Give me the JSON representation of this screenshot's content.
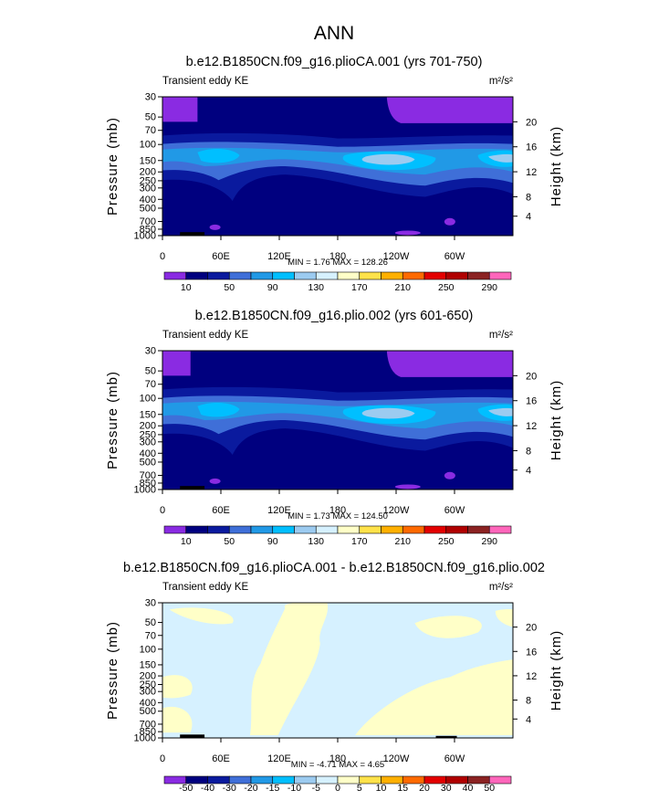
{
  "figure": {
    "suptitle": "ANN",
    "colors": {
      "abs_palette": [
        "#8A2BE2",
        "#00007F",
        "#0A1A9E",
        "#3F6FD8",
        "#2199E6",
        "#00BFFF",
        "#9CCBF0",
        "#D6F1FF",
        "#FFFFC8",
        "#FFE24A",
        "#FFB000",
        "#FF6A00",
        "#E30000",
        "#B00000",
        "#8B2222",
        "#FF66BB"
      ],
      "diff_palette": [
        "#8A2BE2",
        "#00007F",
        "#0A1A9E",
        "#3F6FD8",
        "#2199E6",
        "#00BFFF",
        "#9CCBF0",
        "#D6F1FF",
        "#FFFFC8",
        "#FFE24A",
        "#FFB000",
        "#FF6A00",
        "#E30000",
        "#B00000",
        "#8B2222",
        "#FF66BB"
      ]
    }
  },
  "chart_data": [
    {
      "type": "contour",
      "title": "b.e12.B1850CN.f09_g16.plioCA.001 (yrs 701-750)",
      "subtitle_left": "Transient eddy KE",
      "units": "m²/s²",
      "ylabel": "Pressure (mb)",
      "y2label": "Height (km)",
      "xticks": [
        "0",
        "60E",
        "120E",
        "180",
        "120W",
        "60W"
      ],
      "yticks": [
        "30",
        "50",
        "70",
        "100",
        "150",
        "200",
        "250",
        "300",
        "400",
        "500",
        "700",
        "850",
        "1000"
      ],
      "y2ticks": [
        "20",
        "16",
        "12",
        "8",
        "4"
      ],
      "stats_text": "MIN =    1.76   MAX = 128.26",
      "min": 1.76,
      "max": 128.26,
      "colorbar_labels": [
        "10",
        "50",
        "90",
        "130",
        "170",
        "210",
        "250",
        "290"
      ]
    },
    {
      "type": "contour",
      "title": "b.e12.B1850CN.f09_g16.plio.002 (yrs 601-650)",
      "subtitle_left": "Transient eddy KE",
      "units": "m²/s²",
      "ylabel": "Pressure (mb)",
      "y2label": "Height (km)",
      "xticks": [
        "0",
        "60E",
        "120E",
        "180",
        "120W",
        "60W"
      ],
      "yticks": [
        "30",
        "50",
        "70",
        "100",
        "150",
        "200",
        "250",
        "300",
        "400",
        "500",
        "700",
        "850",
        "1000"
      ],
      "y2ticks": [
        "20",
        "16",
        "12",
        "8",
        "4"
      ],
      "stats_text": "MIN =    1.73   MAX = 124.50",
      "min": 1.73,
      "max": 124.5,
      "colorbar_labels": [
        "10",
        "50",
        "90",
        "130",
        "170",
        "210",
        "250",
        "290"
      ]
    },
    {
      "type": "contour",
      "title": "b.e12.B1850CN.f09_g16.plioCA.001 - b.e12.B1850CN.f09_g16.plio.002",
      "subtitle_left": "Transient eddy KE",
      "units": "m²/s²",
      "ylabel": "Pressure (mb)",
      "y2label": "Height (km)",
      "xticks": [
        "0",
        "60E",
        "120E",
        "180",
        "120W",
        "60W"
      ],
      "yticks": [
        "30",
        "50",
        "70",
        "100",
        "150",
        "200",
        "250",
        "300",
        "400",
        "500",
        "700",
        "850",
        "1000"
      ],
      "y2ticks": [
        "20",
        "16",
        "12",
        "8",
        "4"
      ],
      "stats_text": "MIN =  -4.71   MAX =    4.65",
      "min": -4.71,
      "max": 4.65,
      "colorbar_labels": [
        "-50",
        "-40",
        "-30",
        "-20",
        "-15",
        "-10",
        "-5",
        "0",
        "5",
        "10",
        "15",
        "20",
        "30",
        "40",
        "50"
      ]
    }
  ]
}
